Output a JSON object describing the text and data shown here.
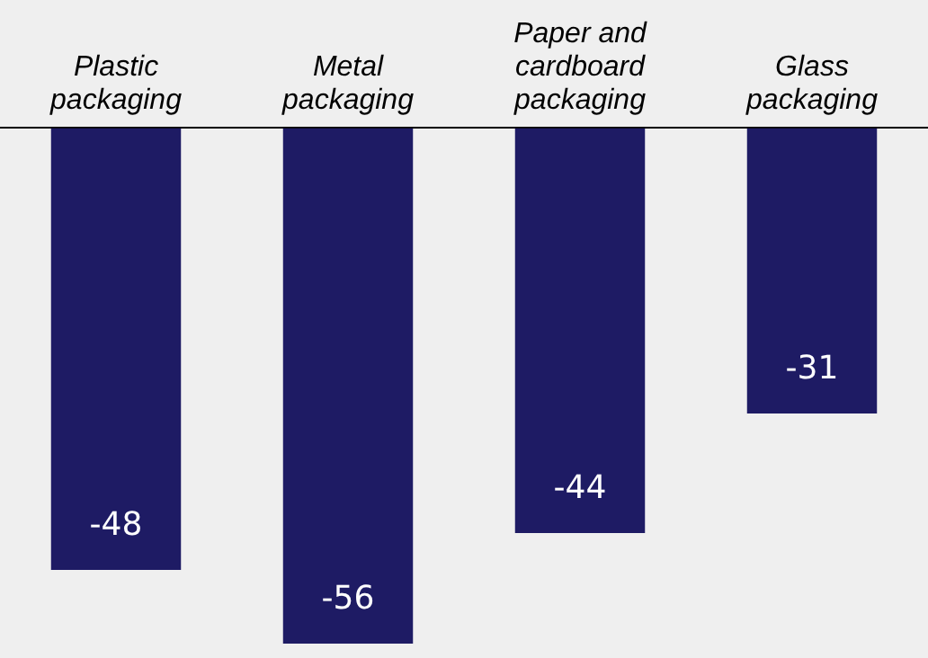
{
  "chart_data": {
    "type": "bar",
    "categories": [
      "Plastic packaging",
      "Metal packaging",
      "Paper and cardboard packaging",
      "Glass packaging"
    ],
    "values": [
      -48,
      -56,
      -44,
      -31
    ],
    "color": "#1e1b64",
    "data_labels": true,
    "grid": false,
    "legend": false,
    "tick_labels": "x"
  }
}
